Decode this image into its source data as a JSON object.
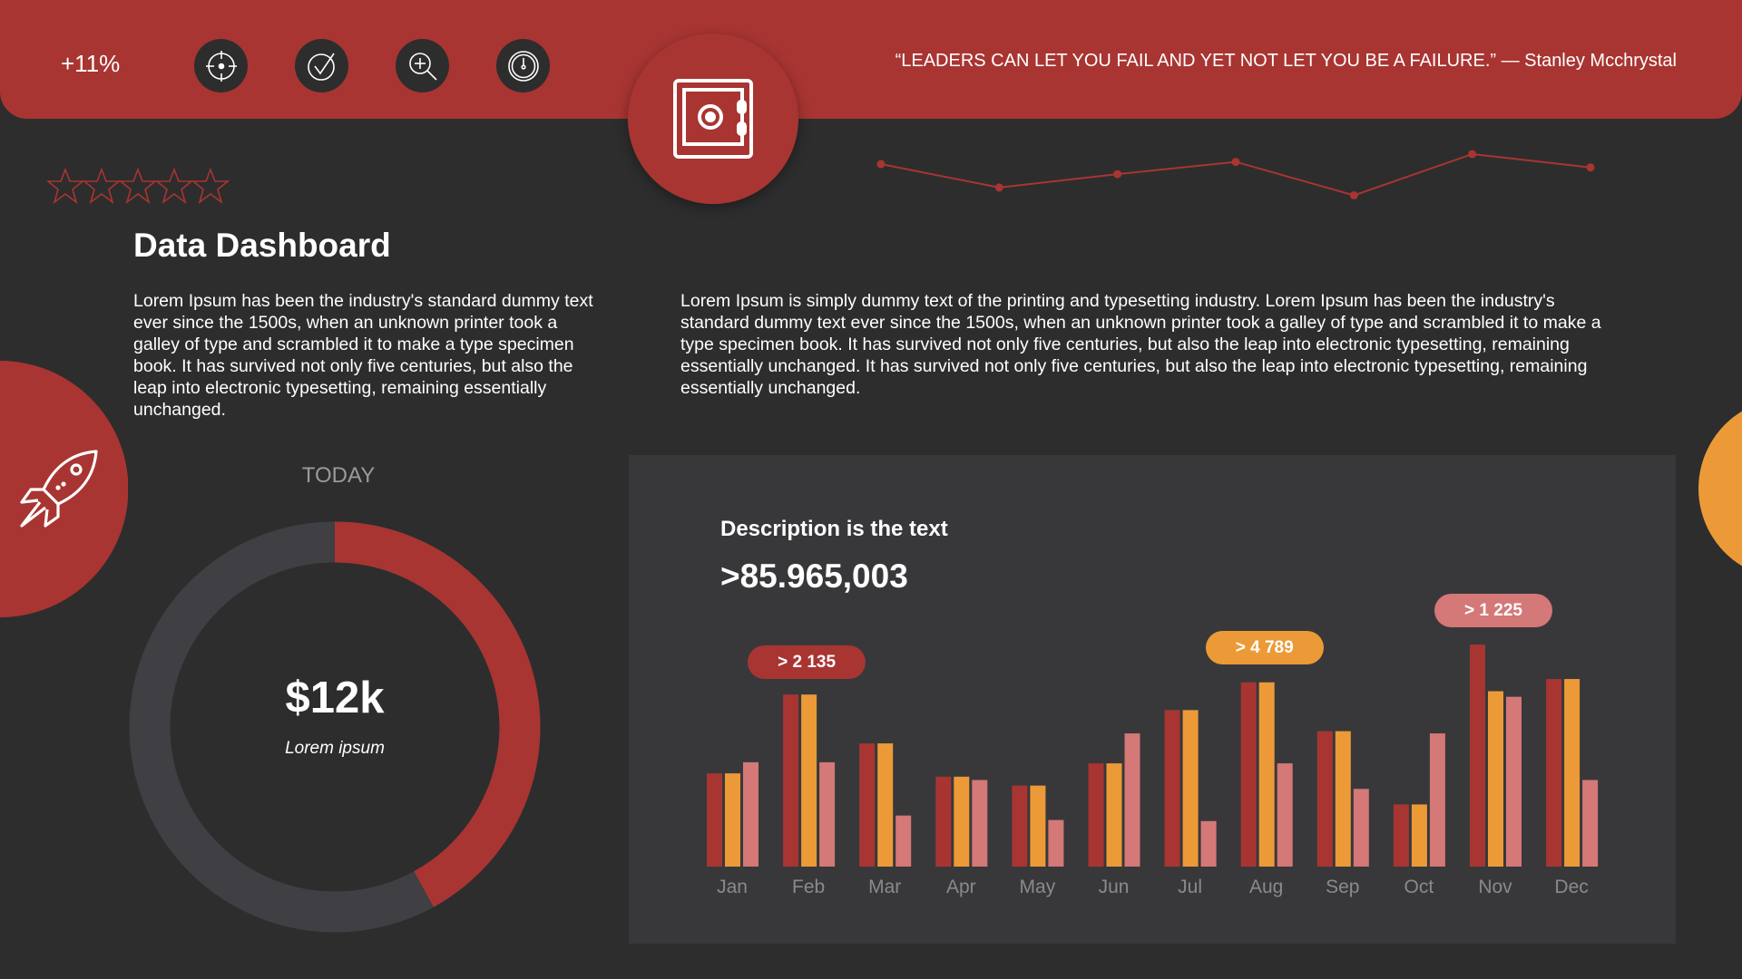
{
  "header": {
    "growth": "+11%",
    "quote": "“LEADERS CAN LET YOU FAIL AND YET NOT LET YOU BE A FAILURE.” — Stanley Mcchrystal",
    "icons": [
      "target-icon",
      "check-icon",
      "zoom-in-icon",
      "clock-icon"
    ],
    "center_icon": "safe-icon"
  },
  "rating": {
    "value": 0,
    "max": 5
  },
  "title": "Data Dashboard",
  "left_text": "Lorem Ipsum has been the industry's standard dummy text ever since the 1500s, when an unknown printer took a galley of type and scrambled it to make a type specimen book. It has survived not only five centuries, but also the leap into electronic typesetting, remaining essentially unchanged.",
  "right_text": "Lorem Ipsum is simply dummy text of the printing and typesetting industry. Lorem Ipsum has been the industry's standard dummy text ever since the 1500s, when an unknown printer took a galley of type and scrambled it to make a type specimen book. It has survived not only five centuries, but also the leap into electronic typesetting, remaining essentially unchanged. It has survived not only five centuries, but also the leap into electronic typesetting, remaining essentially unchanged.",
  "donut": {
    "label": "TODAY",
    "value": "$12k",
    "caption": "Lorem ipsum",
    "fraction": 0.42
  },
  "panel": {
    "description": "Description is the text",
    "total": ">85.965,003",
    "badges": [
      {
        "text": "> 2 135",
        "month": "Feb",
        "color": "#a83532"
      },
      {
        "text": "> 4 789",
        "month": "Aug",
        "color": "#ec9a38"
      },
      {
        "text": "> 1 225",
        "month": "Nov",
        "color": "#d47878"
      }
    ]
  },
  "colors": {
    "red": "#a83532",
    "orange": "#ec9a38",
    "pink": "#d47878",
    "background": "#2d2d2d",
    "panel": "#38383a",
    "track": "#3f3f44"
  },
  "chart_data": [
    {
      "type": "line",
      "values": [
        52,
        31,
        43,
        54,
        24,
        61,
        49
      ],
      "color": "#a83532"
    },
    {
      "type": "bar",
      "categories": [
        "Jan",
        "Feb",
        "Mar",
        "Apr",
        "May",
        "Jun",
        "Jul",
        "Aug",
        "Sep",
        "Oct",
        "Nov",
        "Dec"
      ],
      "series": [
        {
          "values": [
            84,
            155,
            111,
            81,
            73,
            93,
            141,
            166,
            122,
            56,
            200,
            169
          ],
          "color": "#a83532"
        },
        {
          "values": [
            84,
            155,
            111,
            81,
            73,
            93,
            141,
            166,
            122,
            56,
            158,
            169
          ],
          "color": "#ec9a38"
        },
        {
          "values": [
            94,
            94,
            46,
            78,
            42,
            120,
            41,
            93,
            70,
            120,
            153,
            78
          ],
          "color": "#d47878"
        }
      ]
    }
  ]
}
